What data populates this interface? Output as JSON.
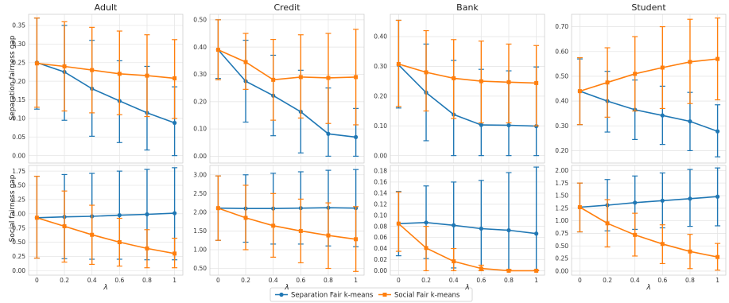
{
  "figure": {
    "row_labels": [
      "Separation fairness gap",
      "Social fairness gap"
    ],
    "legend": [
      {
        "name": "Separation Fair k-means",
        "color": "#1f77b4",
        "marker": "circle"
      },
      {
        "name": "Social Fair k-means",
        "color": "#ff7f0e",
        "marker": "square"
      }
    ]
  },
  "chart_data": [
    {
      "type": "line",
      "title": "Adult",
      "xlabel": "λ",
      "ylabel": "Separation fairness gap",
      "x": [
        0,
        0.2,
        0.4,
        0.6,
        0.8,
        1
      ],
      "xticks": [
        "0",
        "0.2",
        "0.4",
        "0.6",
        "0.8",
        "1"
      ],
      "ylim": [
        -0.02,
        0.38
      ],
      "yticks": [
        0.0,
        0.05,
        0.1,
        0.15,
        0.2,
        0.25,
        0.3,
        0.35
      ],
      "ytick_labels": [
        "0.00",
        "0.05",
        "0.10",
        "0.15",
        "0.20",
        "0.25",
        "0.30",
        "0.35"
      ],
      "grid": true,
      "series": [
        {
          "name": "Separation Fair k-means",
          "color": "#1f77b4",
          "marker": "circle",
          "values": [
            0.25,
            0.225,
            0.18,
            0.147,
            0.115,
            0.088
          ],
          "err_low": [
            0.125,
            0.095,
            0.052,
            0.035,
            0.015,
            0.0
          ],
          "err_high": [
            0.37,
            0.35,
            0.31,
            0.255,
            0.24,
            0.185
          ]
        },
        {
          "name": "Social Fair k-means",
          "color": "#ff7f0e",
          "marker": "square",
          "values": [
            0.248,
            0.24,
            0.23,
            0.22,
            0.215,
            0.208
          ],
          "err_low": [
            0.13,
            0.12,
            0.115,
            0.11,
            0.105,
            0.1
          ],
          "err_high": [
            0.37,
            0.36,
            0.345,
            0.335,
            0.325,
            0.312
          ]
        }
      ]
    },
    {
      "type": "line",
      "title": "Credit",
      "xlabel": "λ",
      "ylabel": "",
      "x": [
        0,
        0.2,
        0.4,
        0.6,
        0.8,
        1
      ],
      "xticks": [
        "0",
        "0.2",
        "0.4",
        "0.6",
        "0.8",
        "1"
      ],
      "ylim": [
        -0.025,
        0.52
      ],
      "yticks": [
        0.0,
        0.1,
        0.2,
        0.3,
        0.4,
        0.5
      ],
      "ytick_labels": [
        "0.00",
        "0.10",
        "0.20",
        "0.30",
        "0.40",
        "0.50"
      ],
      "grid": true,
      "series": [
        {
          "name": "Separation Fair k-means",
          "color": "#1f77b4",
          "marker": "circle",
          "values": [
            0.39,
            0.275,
            0.222,
            0.163,
            0.082,
            0.07
          ],
          "err_low": [
            0.285,
            0.125,
            0.075,
            0.012,
            0.0,
            0.0
          ],
          "err_high": [
            0.5,
            0.425,
            0.37,
            0.315,
            0.25,
            0.175
          ]
        },
        {
          "name": "Social Fair k-means",
          "color": "#ff7f0e",
          "marker": "square",
          "values": [
            0.39,
            0.345,
            0.28,
            0.29,
            0.287,
            0.29
          ],
          "err_low": [
            0.28,
            0.245,
            0.132,
            0.14,
            0.12,
            0.115
          ],
          "err_high": [
            0.5,
            0.45,
            0.428,
            0.445,
            0.45,
            0.465
          ]
        }
      ]
    },
    {
      "type": "line",
      "title": "Bank",
      "xlabel": "λ",
      "ylabel": "",
      "x": [
        0,
        0.2,
        0.4,
        0.6,
        0.8,
        1
      ],
      "xticks": [
        "0",
        "0.2",
        "0.4",
        "0.6",
        "0.8",
        "1"
      ],
      "ylim": [
        -0.025,
        0.475
      ],
      "yticks": [
        0.0,
        0.1,
        0.2,
        0.3,
        0.4
      ],
      "ytick_labels": [
        "0.00",
        "0.10",
        "0.20",
        "0.30",
        "0.40"
      ],
      "grid": true,
      "series": [
        {
          "name": "Separation Fair k-means",
          "color": "#1f77b4",
          "marker": "circle",
          "values": [
            0.305,
            0.212,
            0.138,
            0.103,
            0.102,
            0.099
          ],
          "err_low": [
            0.16,
            0.05,
            0.0,
            0.0,
            0.0,
            0.0
          ],
          "err_high": [
            0.455,
            0.375,
            0.32,
            0.29,
            0.285,
            0.298
          ]
        },
        {
          "name": "Social Fair k-means",
          "color": "#ff7f0e",
          "marker": "square",
          "values": [
            0.308,
            0.28,
            0.26,
            0.25,
            0.247,
            0.244
          ],
          "err_low": [
            0.165,
            0.15,
            0.125,
            0.11,
            0.11,
            0.1
          ],
          "err_high": [
            0.455,
            0.42,
            0.39,
            0.385,
            0.375,
            0.37
          ]
        }
      ]
    },
    {
      "type": "line",
      "title": "Student",
      "xlabel": "λ",
      "ylabel": "",
      "x": [
        0,
        0.2,
        0.4,
        0.6,
        0.8,
        1
      ],
      "xticks": [
        "0",
        "0.2",
        "0.4",
        "0.6",
        "0.8",
        "1"
      ],
      "ylim": [
        0.15,
        0.75
      ],
      "yticks": [
        0.2,
        0.3,
        0.4,
        0.5,
        0.6,
        0.7
      ],
      "ytick_labels": [
        "0.20",
        "0.30",
        "0.40",
        "0.50",
        "0.60",
        "0.70"
      ],
      "grid": true,
      "series": [
        {
          "name": "Separation Fair k-means",
          "color": "#1f77b4",
          "marker": "circle",
          "values": [
            0.44,
            0.4,
            0.365,
            0.342,
            0.318,
            0.278
          ],
          "err_low": [
            0.305,
            0.275,
            0.245,
            0.225,
            0.2,
            0.175
          ],
          "err_high": [
            0.57,
            0.52,
            0.485,
            0.46,
            0.435,
            0.385
          ]
        },
        {
          "name": "Social Fair k-means",
          "color": "#ff7f0e",
          "marker": "square",
          "values": [
            0.44,
            0.475,
            0.51,
            0.535,
            0.558,
            0.57
          ],
          "err_low": [
            0.305,
            0.335,
            0.36,
            0.37,
            0.39,
            0.405
          ],
          "err_high": [
            0.575,
            0.615,
            0.66,
            0.7,
            0.73,
            0.735
          ]
        }
      ]
    },
    {
      "type": "line",
      "title": "",
      "xlabel": "λ",
      "ylabel": "Social fairness gap",
      "x": [
        0,
        0.2,
        0.4,
        0.6,
        0.8,
        1
      ],
      "xticks": [
        "0",
        "0.2",
        "0.4",
        "0.6",
        "0.8",
        "1"
      ],
      "ylim": [
        -0.08,
        1.85
      ],
      "yticks": [
        0.0,
        0.25,
        0.5,
        0.75,
        1.0,
        1.25,
        1.5,
        1.75
      ],
      "ytick_labels": [
        "0.00",
        "0.25",
        "0.50",
        "0.75",
        "1.00",
        "1.25",
        "1.50",
        "1.75"
      ],
      "grid": true,
      "series": [
        {
          "name": "Separation Fair k-means",
          "color": "#1f77b4",
          "marker": "circle",
          "values": [
            0.93,
            0.945,
            0.955,
            0.975,
            0.99,
            1.01
          ],
          "err_low": [
            0.22,
            0.21,
            0.2,
            0.2,
            0.19,
            0.19
          ],
          "err_high": [
            1.66,
            1.69,
            1.71,
            1.75,
            1.78,
            1.81
          ]
        },
        {
          "name": "Social Fair k-means",
          "color": "#ff7f0e",
          "marker": "square",
          "values": [
            0.93,
            0.78,
            0.63,
            0.5,
            0.39,
            0.3
          ],
          "err_low": [
            0.22,
            0.15,
            0.11,
            0.08,
            0.05,
            0.05
          ],
          "err_high": [
            1.66,
            1.4,
            1.15,
            0.92,
            0.72,
            0.57
          ]
        }
      ]
    },
    {
      "type": "line",
      "title": "",
      "xlabel": "λ",
      "ylabel": "",
      "x": [
        0,
        0.2,
        0.4,
        0.6,
        0.8,
        1
      ],
      "xticks": [
        "0",
        "0.2",
        "0.4",
        "0.6",
        "0.8",
        "1"
      ],
      "ylim": [
        0.32,
        3.25
      ],
      "yticks": [
        0.5,
        1.0,
        1.5,
        2.0,
        2.5,
        3.0
      ],
      "ytick_labels": [
        "0.50",
        "1.00",
        "1.50",
        "2.00",
        "2.50",
        "3.00"
      ],
      "grid": true,
      "series": [
        {
          "name": "Separation Fair k-means",
          "color": "#1f77b4",
          "marker": "circle",
          "values": [
            2.11,
            2.1,
            2.1,
            2.11,
            2.12,
            2.11
          ],
          "err_low": [
            1.25,
            1.2,
            1.15,
            1.15,
            1.1,
            1.08
          ],
          "err_high": [
            2.97,
            3.0,
            3.04,
            3.08,
            3.12,
            3.14
          ]
        },
        {
          "name": "Social Fair k-means",
          "color": "#ff7f0e",
          "marker": "square",
          "values": [
            2.11,
            1.85,
            1.64,
            1.5,
            1.38,
            1.28
          ],
          "err_low": [
            1.25,
            1.0,
            0.8,
            0.65,
            0.5,
            0.42
          ],
          "err_high": [
            2.97,
            2.72,
            2.5,
            2.35,
            2.25,
            2.15
          ]
        }
      ]
    },
    {
      "type": "line",
      "title": "",
      "xlabel": "λ",
      "ylabel": "",
      "x": [
        0,
        0.2,
        0.4,
        0.6,
        0.8,
        1
      ],
      "xticks": [
        "0",
        "0.2",
        "0.4",
        "0.6",
        "0.8",
        "1"
      ],
      "ylim": [
        -0.008,
        0.19
      ],
      "yticks": [
        0.0,
        0.02,
        0.04,
        0.06,
        0.08,
        0.1,
        0.12,
        0.14,
        0.16,
        0.18
      ],
      "ytick_labels": [
        "0.00",
        "0.02",
        "0.04",
        "0.06",
        "0.08",
        "0.10",
        "0.12",
        "0.14",
        "0.16",
        "0.18"
      ],
      "grid": true,
      "series": [
        {
          "name": "Separation Fair k-means",
          "color": "#1f77b4",
          "marker": "circle",
          "values": [
            0.085,
            0.087,
            0.082,
            0.076,
            0.073,
            0.067
          ],
          "err_low": [
            0.027,
            0.022,
            0.005,
            0.0,
            0.0,
            0.0
          ],
          "err_high": [
            0.143,
            0.153,
            0.16,
            0.163,
            0.177,
            0.187
          ]
        },
        {
          "name": "Social Fair k-means",
          "color": "#ff7f0e",
          "marker": "square",
          "values": [
            0.085,
            0.041,
            0.017,
            0.004,
            0.0,
            0.0
          ],
          "err_low": [
            0.035,
            0.0,
            0.0,
            0.0,
            0.0,
            0.0
          ],
          "err_high": [
            0.142,
            0.08,
            0.04,
            0.01,
            0.002,
            0.001
          ]
        }
      ]
    },
    {
      "type": "line",
      "title": "",
      "xlabel": "λ",
      "ylabel": "",
      "x": [
        0,
        0.2,
        0.4,
        0.6,
        0.8,
        1
      ],
      "xticks": [
        "0",
        "0.2",
        "0.4",
        "0.6",
        "0.8",
        "1"
      ],
      "ylim": [
        -0.08,
        2.1
      ],
      "yticks": [
        0.0,
        0.25,
        0.5,
        0.75,
        1.0,
        1.25,
        1.5,
        1.75,
        2.0
      ],
      "ytick_labels": [
        "0.00",
        "0.25",
        "0.50",
        "0.75",
        "1.00",
        "1.25",
        "1.50",
        "1.75",
        "2.00"
      ],
      "grid": true,
      "series": [
        {
          "name": "Separation Fair k-means",
          "color": "#1f77b4",
          "marker": "circle",
          "values": [
            1.27,
            1.31,
            1.36,
            1.4,
            1.44,
            1.48
          ],
          "err_low": [
            0.78,
            0.8,
            0.83,
            0.86,
            0.89,
            0.9
          ],
          "err_high": [
            1.75,
            1.82,
            1.89,
            1.95,
            2.02,
            2.05
          ]
        },
        {
          "name": "Social Fair k-means",
          "color": "#ff7f0e",
          "marker": "square",
          "values": [
            1.27,
            0.95,
            0.72,
            0.54,
            0.39,
            0.28
          ],
          "err_low": [
            0.78,
            0.48,
            0.3,
            0.15,
            0.05,
            0.02
          ],
          "err_high": [
            1.75,
            1.42,
            1.15,
            0.92,
            0.73,
            0.55
          ]
        }
      ]
    }
  ]
}
